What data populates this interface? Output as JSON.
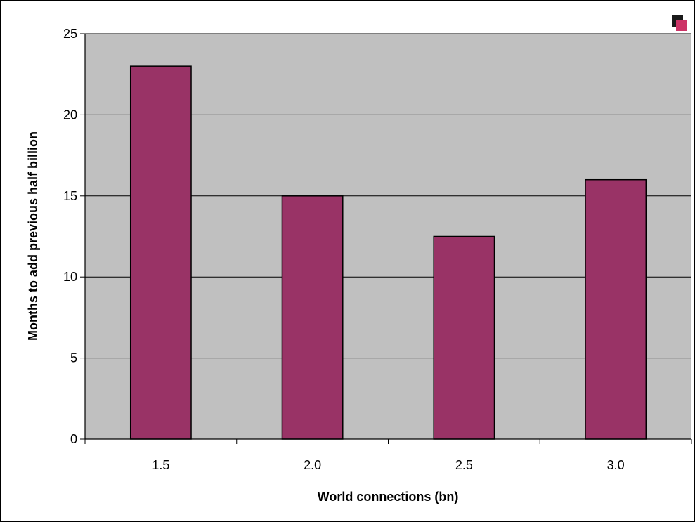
{
  "chart_data": {
    "type": "bar",
    "categories": [
      "1.5",
      "2.0",
      "2.5",
      "3.0"
    ],
    "values": [
      23,
      15,
      12.5,
      16
    ],
    "title": "",
    "xlabel": "World connections (bn)",
    "ylabel": "Months to add previous half billion",
    "ylim": [
      0,
      25
    ],
    "yticks": [
      "0",
      "5",
      "10",
      "15",
      "20",
      "25"
    ],
    "grid": true,
    "legend": "none",
    "colors": {
      "plot_background": "#c0c0c0",
      "bar_fill": "#993366",
      "bar_stroke": "#000000",
      "gridline": "#000000"
    }
  },
  "legend_icon": "chart-legend-key-icon"
}
